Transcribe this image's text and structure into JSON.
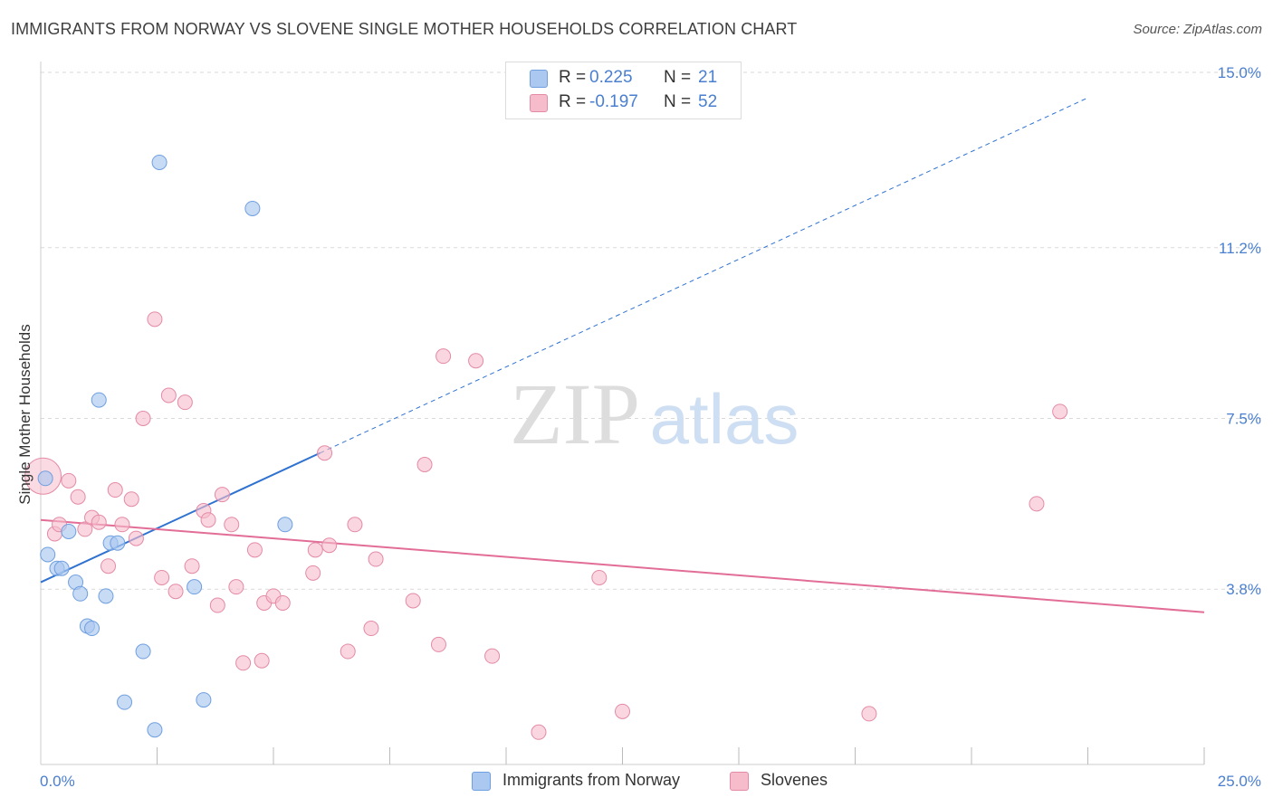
{
  "title": "IMMIGRANTS FROM NORWAY VS SLOVENE SINGLE MOTHER HOUSEHOLDS CORRELATION CHART",
  "source": "Source: ZipAtlas.com",
  "watermark": {
    "zip": "ZIP",
    "atlas": "atlas"
  },
  "colors": {
    "blue_fill": "#aac8f0",
    "blue_stroke": "#6f9fe0",
    "blue_line": "#2f72d0",
    "pink_fill": "#f6bccc",
    "pink_stroke": "#e48aa6",
    "pink_line": "#e26d97",
    "tick_label": "#4a7fd0",
    "grid": "#d9d9d9"
  },
  "legend": {
    "r_label": "R =",
    "n_label": "N =",
    "rows": [
      {
        "r": "0.225",
        "n": "21"
      },
      {
        "r": "-0.197",
        "n": "52"
      }
    ]
  },
  "bottom_legend": {
    "norway": "Immigrants from Norway",
    "slovenes": "Slovenes"
  },
  "chart_data": {
    "type": "scatter",
    "title": "IMMIGRANTS FROM NORWAY VS SLOVENE SINGLE MOTHER HOUSEHOLDS CORRELATION CHART",
    "xlabel": "",
    "ylabel": "Single Mother Households",
    "xlim": [
      0,
      25
    ],
    "ylim": [
      0,
      15
    ],
    "x_tick_labels": [
      "0.0%",
      "25.0%"
    ],
    "y_ticks": [
      3.8,
      7.5,
      11.2,
      15.0
    ],
    "y_tick_labels": [
      "3.8%",
      "7.5%",
      "11.2%",
      "15.0%"
    ],
    "grid": "horizontal dashed",
    "series": [
      {
        "name": "Immigrants from Norway",
        "color": "#aac8f0",
        "points": [
          [
            0.1,
            6.2
          ],
          [
            0.15,
            4.55
          ],
          [
            0.35,
            4.25
          ],
          [
            0.45,
            4.25
          ],
          [
            0.6,
            5.05
          ],
          [
            0.75,
            3.95
          ],
          [
            0.85,
            3.7
          ],
          [
            1.0,
            3.0
          ],
          [
            1.1,
            2.95
          ],
          [
            1.25,
            7.9
          ],
          [
            1.4,
            3.65
          ],
          [
            1.5,
            4.8
          ],
          [
            1.65,
            4.8
          ],
          [
            1.8,
            1.35
          ],
          [
            2.2,
            2.45
          ],
          [
            2.45,
            0.75
          ],
          [
            2.55,
            13.05
          ],
          [
            3.3,
            3.85
          ],
          [
            3.5,
            1.4
          ],
          [
            4.55,
            12.05
          ],
          [
            5.25,
            5.2
          ]
        ],
        "trend": {
          "x": [
            0.0,
            6.0
          ],
          "y": [
            3.95,
            6.75
          ],
          "dashed_extension": {
            "x": [
              6.0,
              22.5
            ],
            "y": [
              6.75,
              14.45
            ]
          }
        }
      },
      {
        "name": "Slovenes",
        "color": "#f6bccc",
        "points": [
          [
            0.05,
            6.25
          ],
          [
            0.3,
            5.0
          ],
          [
            0.4,
            5.2
          ],
          [
            0.6,
            6.15
          ],
          [
            0.8,
            5.8
          ],
          [
            0.95,
            5.1
          ],
          [
            1.1,
            5.35
          ],
          [
            1.25,
            5.25
          ],
          [
            1.45,
            4.3
          ],
          [
            1.6,
            5.95
          ],
          [
            1.75,
            5.2
          ],
          [
            1.95,
            5.75
          ],
          [
            2.05,
            4.9
          ],
          [
            2.2,
            7.5
          ],
          [
            2.45,
            9.65
          ],
          [
            2.6,
            4.05
          ],
          [
            2.75,
            8.0
          ],
          [
            2.9,
            3.75
          ],
          [
            3.1,
            7.85
          ],
          [
            3.25,
            4.3
          ],
          [
            3.5,
            5.5
          ],
          [
            3.6,
            5.3
          ],
          [
            3.8,
            3.45
          ],
          [
            3.9,
            5.85
          ],
          [
            4.1,
            5.2
          ],
          [
            4.2,
            3.85
          ],
          [
            4.35,
            2.2
          ],
          [
            4.6,
            4.65
          ],
          [
            4.75,
            2.25
          ],
          [
            4.8,
            3.5
          ],
          [
            5.0,
            3.65
          ],
          [
            5.2,
            3.5
          ],
          [
            5.85,
            4.15
          ],
          [
            5.9,
            4.65
          ],
          [
            6.1,
            6.75
          ],
          [
            6.2,
            4.75
          ],
          [
            6.6,
            2.45
          ],
          [
            6.75,
            5.2
          ],
          [
            7.1,
            2.95
          ],
          [
            7.2,
            4.45
          ],
          [
            8.0,
            3.55
          ],
          [
            8.25,
            6.5
          ],
          [
            8.55,
            2.6
          ],
          [
            8.65,
            8.85
          ],
          [
            9.35,
            8.75
          ],
          [
            9.7,
            2.35
          ],
          [
            10.7,
            0.7
          ],
          [
            12.0,
            4.05
          ],
          [
            12.5,
            1.15
          ],
          [
            17.8,
            1.1
          ],
          [
            21.4,
            5.65
          ],
          [
            21.9,
            7.65
          ]
        ],
        "trend": {
          "x": [
            0.0,
            25.0
          ],
          "y": [
            5.3,
            3.3
          ]
        }
      }
    ]
  }
}
